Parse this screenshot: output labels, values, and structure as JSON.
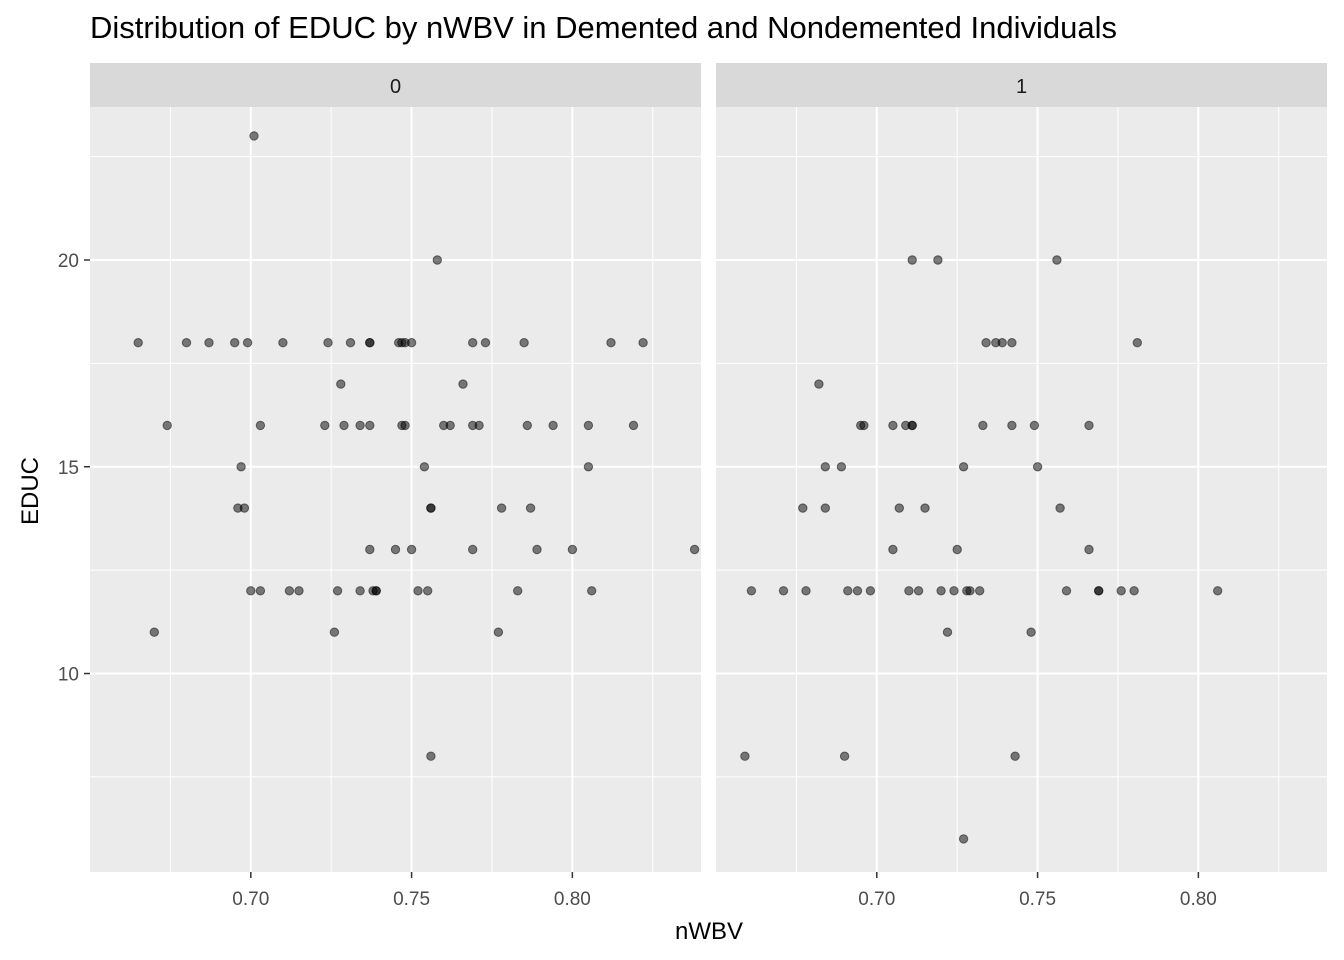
{
  "chart_data": {
    "type": "scatter",
    "title": "Distribution of EDUC by nWBV in Demented and Nondemented Individuals",
    "xlabel": "nWBV",
    "ylabel": "EDUC",
    "xlim": [
      0.65,
      0.84
    ],
    "ylim": [
      5.2,
      23.7
    ],
    "x_ticks": [
      "0.70",
      "0.75",
      "0.80"
    ],
    "y_ticks": [
      "10",
      "15",
      "20"
    ],
    "x_tick_values": [
      0.7,
      0.75,
      0.8
    ],
    "y_tick_values": [
      10,
      15,
      20
    ],
    "grid": true,
    "point_color": "#000000",
    "point_alpha": 0.5,
    "panel_background": "#ebebeb",
    "strip_background": "#d9d9d9",
    "facets": [
      {
        "label": "0",
        "points": [
          [
            0.665,
            18
          ],
          [
            0.67,
            11
          ],
          [
            0.674,
            16
          ],
          [
            0.68,
            18
          ],
          [
            0.687,
            18
          ],
          [
            0.695,
            18
          ],
          [
            0.696,
            14
          ],
          [
            0.697,
            15
          ],
          [
            0.698,
            14
          ],
          [
            0.699,
            18
          ],
          [
            0.7,
            12
          ],
          [
            0.701,
            23
          ],
          [
            0.703,
            16
          ],
          [
            0.703,
            12
          ],
          [
            0.71,
            18
          ],
          [
            0.712,
            12
          ],
          [
            0.715,
            12
          ],
          [
            0.723,
            16
          ],
          [
            0.724,
            18
          ],
          [
            0.726,
            11
          ],
          [
            0.727,
            12
          ],
          [
            0.728,
            17
          ],
          [
            0.729,
            16
          ],
          [
            0.731,
            18
          ],
          [
            0.734,
            12
          ],
          [
            0.734,
            16
          ],
          [
            0.737,
            16
          ],
          [
            0.737,
            13
          ],
          [
            0.737,
            18
          ],
          [
            0.737,
            18
          ],
          [
            0.738,
            12
          ],
          [
            0.739,
            12
          ],
          [
            0.739,
            12
          ],
          [
            0.745,
            13
          ],
          [
            0.746,
            18
          ],
          [
            0.747,
            16
          ],
          [
            0.747,
            18
          ],
          [
            0.748,
            16
          ],
          [
            0.748,
            18
          ],
          [
            0.75,
            13
          ],
          [
            0.75,
            18
          ],
          [
            0.752,
            12
          ],
          [
            0.754,
            15
          ],
          [
            0.755,
            12
          ],
          [
            0.756,
            8
          ],
          [
            0.756,
            14
          ],
          [
            0.756,
            14
          ],
          [
            0.758,
            20
          ],
          [
            0.76,
            16
          ],
          [
            0.762,
            16
          ],
          [
            0.766,
            17
          ],
          [
            0.769,
            16
          ],
          [
            0.769,
            18
          ],
          [
            0.769,
            13
          ],
          [
            0.771,
            16
          ],
          [
            0.773,
            18
          ],
          [
            0.777,
            11
          ],
          [
            0.778,
            14
          ],
          [
            0.783,
            12
          ],
          [
            0.785,
            18
          ],
          [
            0.786,
            16
          ],
          [
            0.787,
            14
          ],
          [
            0.789,
            13
          ],
          [
            0.794,
            16
          ],
          [
            0.8,
            13
          ],
          [
            0.805,
            16
          ],
          [
            0.805,
            15
          ],
          [
            0.806,
            12
          ],
          [
            0.812,
            18
          ],
          [
            0.819,
            16
          ],
          [
            0.822,
            18
          ],
          [
            0.838,
            13
          ]
        ]
      },
      {
        "label": "1",
        "points": [
          [
            0.659,
            8
          ],
          [
            0.661,
            12
          ],
          [
            0.671,
            12
          ],
          [
            0.677,
            14
          ],
          [
            0.678,
            12
          ],
          [
            0.682,
            17
          ],
          [
            0.684,
            14
          ],
          [
            0.684,
            15
          ],
          [
            0.689,
            15
          ],
          [
            0.69,
            8
          ],
          [
            0.691,
            12
          ],
          [
            0.694,
            12
          ],
          [
            0.695,
            16
          ],
          [
            0.696,
            16
          ],
          [
            0.698,
            12
          ],
          [
            0.705,
            16
          ],
          [
            0.705,
            13
          ],
          [
            0.707,
            14
          ],
          [
            0.709,
            16
          ],
          [
            0.71,
            12
          ],
          [
            0.711,
            16
          ],
          [
            0.711,
            20
          ],
          [
            0.711,
            16
          ],
          [
            0.713,
            12
          ],
          [
            0.715,
            14
          ],
          [
            0.719,
            20
          ],
          [
            0.72,
            12
          ],
          [
            0.722,
            11
          ],
          [
            0.724,
            12
          ],
          [
            0.725,
            13
          ],
          [
            0.727,
            6
          ],
          [
            0.727,
            15
          ],
          [
            0.728,
            12
          ],
          [
            0.729,
            12
          ],
          [
            0.732,
            12
          ],
          [
            0.733,
            16
          ],
          [
            0.734,
            18
          ],
          [
            0.737,
            18
          ],
          [
            0.739,
            18
          ],
          [
            0.742,
            18
          ],
          [
            0.742,
            16
          ],
          [
            0.743,
            8
          ],
          [
            0.748,
            11
          ],
          [
            0.749,
            16
          ],
          [
            0.75,
            15
          ],
          [
            0.756,
            20
          ],
          [
            0.757,
            14
          ],
          [
            0.759,
            12
          ],
          [
            0.766,
            13
          ],
          [
            0.766,
            16
          ],
          [
            0.769,
            12
          ],
          [
            0.769,
            12
          ],
          [
            0.776,
            12
          ],
          [
            0.78,
            12
          ],
          [
            0.781,
            18
          ],
          [
            0.806,
            12
          ]
        ]
      }
    ]
  }
}
